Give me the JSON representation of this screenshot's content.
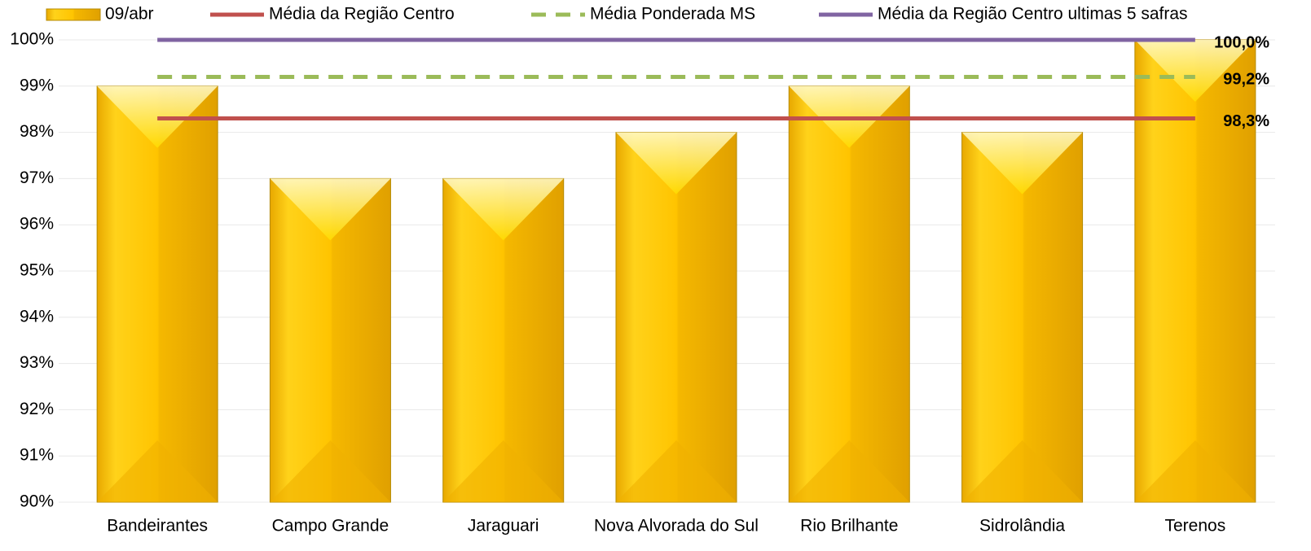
{
  "chart_data": {
    "type": "bar",
    "categories": [
      "Bandeirantes",
      "Campo Grande",
      "Jaraguari",
      "Nova Alvorada do Sul",
      "Rio Brilhante",
      "Sidrolândia",
      "Terenos"
    ],
    "series": [
      {
        "name": "09/abr",
        "type": "bar",
        "color": "#ffc000",
        "values": [
          99,
          97,
          97,
          98,
          99,
          98,
          100
        ]
      },
      {
        "name": "Média da Região Centro",
        "type": "line",
        "color": "#c0504d",
        "dashed": false,
        "values": [
          98.3,
          98.3,
          98.3,
          98.3,
          98.3,
          98.3,
          98.3
        ],
        "value_labels": [
          null,
          null,
          null,
          null,
          null,
          null,
          "98,3%"
        ]
      },
      {
        "name": "Média Ponderada MS",
        "type": "line",
        "color": "#9bbb59",
        "dashed": true,
        "values": [
          99.2,
          99.2,
          99.2,
          99.2,
          99.2,
          99.2,
          99.2
        ],
        "value_labels": [
          null,
          null,
          null,
          null,
          null,
          null,
          "99,2%"
        ]
      },
      {
        "name": "Média da Região Centro ultimas 5 safras",
        "type": "line",
        "color": "#8064a2",
        "dashed": false,
        "values": [
          100,
          100,
          100,
          100,
          100,
          100,
          100
        ],
        "value_labels": [
          null,
          null,
          null,
          null,
          null,
          null,
          "100,0%"
        ]
      }
    ],
    "ylim": [
      90,
      100
    ],
    "yticks": [
      {
        "value": 90,
        "label": "90%"
      },
      {
        "value": 91,
        "label": "91%"
      },
      {
        "value": 92,
        "label": "92%"
      },
      {
        "value": 93,
        "label": "93%"
      },
      {
        "value": 94,
        "label": "94%"
      },
      {
        "value": 95,
        "label": "95%"
      },
      {
        "value": 96,
        "label": "96%"
      },
      {
        "value": 97,
        "label": "97%"
      },
      {
        "value": 98,
        "label": "98%"
      },
      {
        "value": 99,
        "label": "99%"
      },
      {
        "value": 100,
        "label": "100%"
      }
    ],
    "grid": true,
    "legend": "top"
  }
}
